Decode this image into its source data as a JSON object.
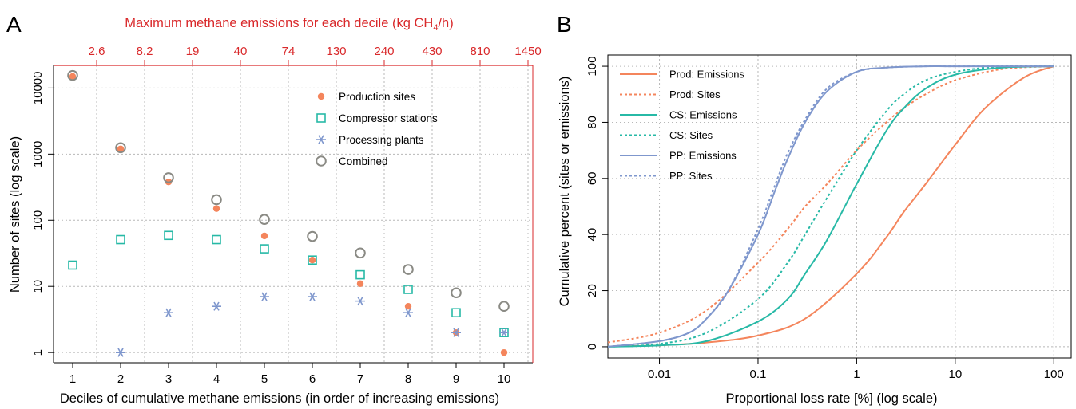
{
  "panels": {
    "a_label": "A",
    "b_label": "B"
  },
  "colors": {
    "production": "#f4855c",
    "compressor": "#27b9a6",
    "processing": "#7f97cd",
    "combined": "#8a8a84",
    "top_axis": "#d9292b",
    "grid": "#b8b8b8"
  },
  "chart_data": [
    {
      "type": "scatter",
      "title": "",
      "xlabel": "Deciles of cumulative methane emissions (in order of increasing emissions)",
      "ylabel": "Number of sites (log scale)",
      "y_scale": "log",
      "ylim": [
        0.7,
        22000
      ],
      "xlim": [
        0.6,
        10.6
      ],
      "grid": true,
      "x_ticks": [
        "1",
        "2",
        "3",
        "4",
        "5",
        "6",
        "7",
        "8",
        "9",
        "10"
      ],
      "y_ticks": [
        "1",
        "10",
        "100",
        "1000",
        "10000"
      ],
      "top_axis": {
        "label_main": "Maximum methane emissions for each decile (kg CH",
        "label_sub": "4",
        "label_tail": "/h)",
        "ticks": [
          "2.6",
          "8.2",
          "19",
          "40",
          "74",
          "130",
          "240",
          "430",
          "810",
          "1450"
        ]
      },
      "legend_position": "top-right",
      "series": [
        {
          "name": "Production sites",
          "marker": "filled-circle",
          "color": "#f4855c",
          "points": [
            [
              1,
              15000
            ],
            [
              2,
              1200
            ],
            [
              3,
              380
            ],
            [
              4,
              150
            ],
            [
              5,
              58
            ],
            [
              6,
              25
            ],
            [
              7,
              11
            ],
            [
              8,
              5
            ],
            [
              9,
              2
            ],
            [
              10,
              1
            ]
          ]
        },
        {
          "name": "Compressor stations",
          "marker": "open-square",
          "color": "#27b9a6",
          "points": [
            [
              1,
              21
            ],
            [
              2,
              51
            ],
            [
              3,
              59
            ],
            [
              4,
              51
            ],
            [
              5,
              37
            ],
            [
              6,
              25
            ],
            [
              7,
              15
            ],
            [
              8,
              9
            ],
            [
              9,
              4
            ],
            [
              10,
              2
            ]
          ]
        },
        {
          "name": "Processing plants",
          "marker": "asterisk",
          "color": "#7f97cd",
          "points": [
            [
              2,
              1
            ],
            [
              3,
              4
            ],
            [
              4,
              5
            ],
            [
              5,
              7
            ],
            [
              6,
              7
            ],
            [
              7,
              6
            ],
            [
              8,
              4
            ],
            [
              9,
              2
            ],
            [
              10,
              2
            ]
          ]
        },
        {
          "name": "Combined",
          "marker": "open-circle",
          "color": "#8a8a84",
          "points": [
            [
              1,
              15500
            ],
            [
              2,
              1250
            ],
            [
              3,
              440
            ],
            [
              4,
              205
            ],
            [
              5,
              103
            ],
            [
              6,
              57
            ],
            [
              7,
              32
            ],
            [
              8,
              18
            ],
            [
              9,
              8
            ],
            [
              10,
              5
            ]
          ]
        }
      ]
    },
    {
      "type": "line",
      "title": "",
      "xlabel": "Proportional loss rate [%] (log scale)",
      "ylabel": "Cumulative percent (sites or emissions)",
      "x_scale": "log",
      "xlim": [
        0.003,
        150
      ],
      "ylim": [
        -4,
        104
      ],
      "grid": true,
      "x_ticks": [
        {
          "value": 0.01,
          "label": "0.01"
        },
        {
          "value": 0.1,
          "label": "0.1"
        },
        {
          "value": 1,
          "label": "1"
        },
        {
          "value": 10,
          "label": "10"
        },
        {
          "value": 100,
          "label": "100"
        }
      ],
      "y_ticks": [
        "0",
        "20",
        "40",
        "60",
        "80",
        "100"
      ],
      "legend_position": "top-left",
      "series": [
        {
          "name": "Prod: Emissions",
          "color": "#f4855c",
          "dash": false,
          "x": [
            0.003,
            0.01,
            0.03,
            0.1,
            0.3,
            1,
            2,
            3,
            5,
            10,
            20,
            50,
            100
          ],
          "y": [
            0.1,
            0.5,
            1.5,
            4,
            10,
            26,
            39,
            48,
            58,
            72,
            85,
            96,
            100
          ]
        },
        {
          "name": "Prod: Sites",
          "color": "#f4855c",
          "dash": true,
          "x": [
            0.003,
            0.01,
            0.03,
            0.1,
            0.2,
            0.3,
            0.5,
            1,
            2,
            3,
            5,
            10,
            30,
            100
          ],
          "y": [
            1.5,
            5,
            13,
            30,
            42,
            50,
            58,
            70,
            80,
            85,
            90,
            95,
            99,
            100
          ]
        },
        {
          "name": "CS: Emissions",
          "color": "#27b9a6",
          "dash": false,
          "x": [
            0.003,
            0.01,
            0.03,
            0.1,
            0.2,
            0.3,
            0.5,
            1,
            2,
            3,
            5,
            10,
            30,
            100
          ],
          "y": [
            0,
            0.5,
            2,
            9,
            17,
            26,
            38,
            58,
            77,
            85,
            92,
            97,
            99.5,
            100
          ]
        },
        {
          "name": "CS: Sites",
          "color": "#27b9a6",
          "dash": true,
          "x": [
            0.003,
            0.01,
            0.03,
            0.1,
            0.2,
            0.3,
            0.5,
            1,
            2,
            3,
            5,
            10,
            30,
            100
          ],
          "y": [
            0,
            1,
            5,
            17,
            30,
            40,
            53,
            70,
            84,
            90,
            95,
            98,
            100,
            100
          ]
        },
        {
          "name": "PP: Emissions",
          "color": "#7f97cd",
          "dash": false,
          "x": [
            0.003,
            0.01,
            0.02,
            0.03,
            0.05,
            0.1,
            0.15,
            0.2,
            0.3,
            0.5,
            1,
            2,
            5,
            10,
            100
          ],
          "y": [
            0,
            2,
            5,
            10,
            20,
            40,
            56,
            67,
            80,
            91,
            98,
            99.5,
            100,
            100,
            100
          ]
        },
        {
          "name": "PP: Sites",
          "color": "#7f97cd",
          "dash": true,
          "x": [
            0.003,
            0.01,
            0.02,
            0.03,
            0.05,
            0.1,
            0.15,
            0.2,
            0.3,
            0.5,
            1,
            2,
            5,
            10,
            100
          ],
          "y": [
            0,
            2,
            5,
            10,
            20,
            42,
            58,
            69,
            81,
            92,
            98,
            99.5,
            100,
            100,
            100
          ]
        }
      ]
    }
  ]
}
